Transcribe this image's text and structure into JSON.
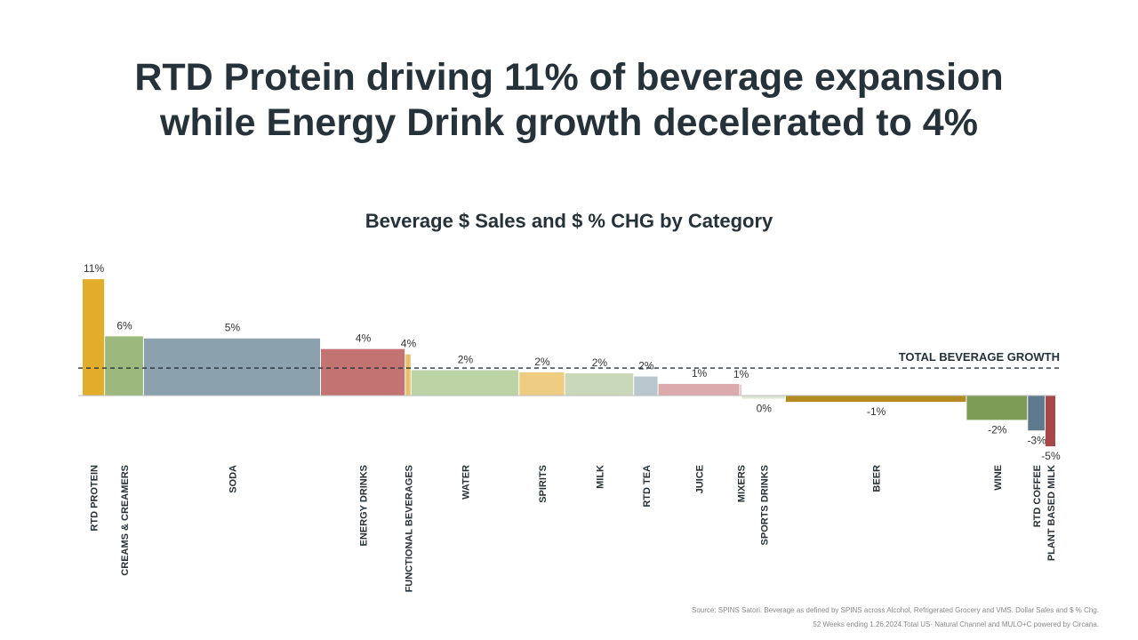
{
  "chart_data": {
    "type": "variwide",
    "title": "RTD Protein driving 11% of beverage expansion",
    "title_line2": "while Energy Drink growth decelerated to 4%",
    "subtitle": "Beverage $ Sales and $ % CHG by Category",
    "categories": [
      "RTD PROTEIN",
      "CREAMS & CREAMERS",
      "SODA",
      "ENERGY DRINKS",
      "FUNCTIONAL BEVERAGES",
      "WATER",
      "SPIRITS",
      "MILK",
      "RTD TEA",
      "JUICE",
      "MIXERS",
      "SPORTS DRINKS",
      "BEER",
      "WINE",
      "RTD COFFEE",
      "PLANT BASED MILK"
    ],
    "values": [
      11,
      5.6,
      5.4,
      4.4,
      3.9,
      2.4,
      2.2,
      2.1,
      1.8,
      1.1,
      1.0,
      -0.3,
      -0.6,
      -2.3,
      -3.3,
      -4.8
    ],
    "value_labels": [
      "11%",
      "6%",
      "5%",
      "4%",
      "4%",
      "2%",
      "2%",
      "2%",
      "2%",
      "1%",
      "1%",
      "0%",
      "-1%",
      "-2%",
      "-3%",
      "-5%"
    ],
    "sales_share": [
      2.3,
      4.0,
      18.2,
      8.7,
      0.6,
      11.1,
      4.7,
      7.1,
      2.5,
      8.4,
      0.2,
      4.5,
      18.6,
      6.3,
      1.8,
      1.1
    ],
    "colors": [
      "#e2ad2a",
      "#9db87c",
      "#8ba1ad",
      "#c27372",
      "#e6c06e",
      "#bcd3a5",
      "#eecd82",
      "#c8d8b8",
      "#b8c6cd",
      "#dcaaad",
      "#dcaaad",
      "#dde8d0",
      "#b48a22",
      "#7d9c55",
      "#5e7a8c",
      "#a8474a"
    ],
    "reference_value": 2.6,
    "reference_label": "TOTAL BEVERAGE GROWTH",
    "footnote": "Source: SPINS Satori. Beverage as defined by SPINS across Alcohol, Refrigerated Grocery and VMS. Dollar Sales and $ % Chg.",
    "footnote_line2": "52 Weeks ending 1.26.2024.Total US- Natural Channel and MULO+C powered by Circana."
  }
}
